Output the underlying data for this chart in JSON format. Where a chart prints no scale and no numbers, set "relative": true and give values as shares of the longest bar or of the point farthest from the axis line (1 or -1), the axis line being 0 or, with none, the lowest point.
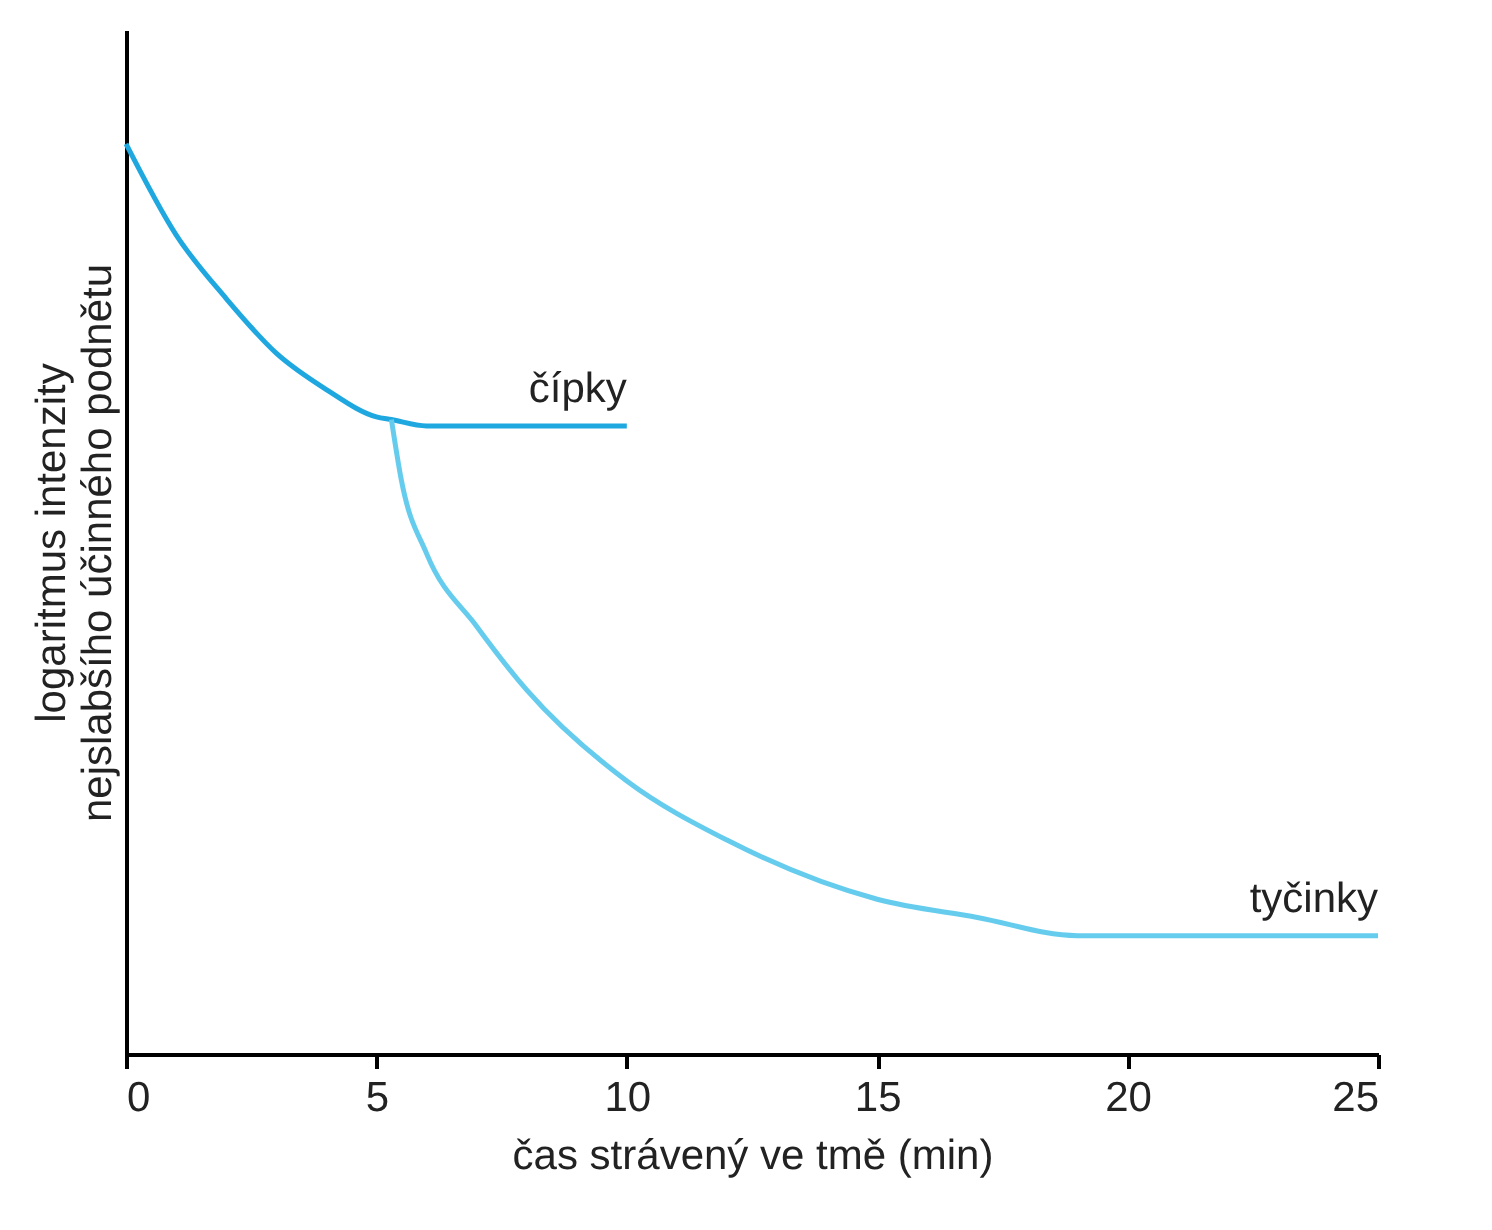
{
  "chart_data": {
    "type": "line",
    "relative": true,
    "xlabel": "čas strávený ve tmě (min)",
    "ylabel": "logaritmus intenzity\nnejslabšího účinného podnětu",
    "xlim": [
      0,
      25
    ],
    "xticks": [
      0,
      5,
      10,
      15,
      20,
      25
    ],
    "series": [
      {
        "name": "čípky",
        "color": "#1fa8e0",
        "x": [
          0,
          1,
          2,
          3,
          4,
          5,
          5.3,
          6,
          10
        ],
        "values": [
          1.0,
          0.9,
          0.83,
          0.77,
          0.73,
          0.7,
          0.697,
          0.69,
          0.69
        ]
      },
      {
        "name": "tyčinky",
        "color": "#66ccee",
        "x": [
          5.3,
          5.5,
          6,
          7,
          8,
          10,
          12,
          15,
          17,
          19,
          25
        ],
        "values": [
          0.697,
          0.63,
          0.55,
          0.47,
          0.4,
          0.3,
          0.235,
          0.17,
          0.15,
          0.13,
          0.13
        ]
      }
    ]
  }
}
